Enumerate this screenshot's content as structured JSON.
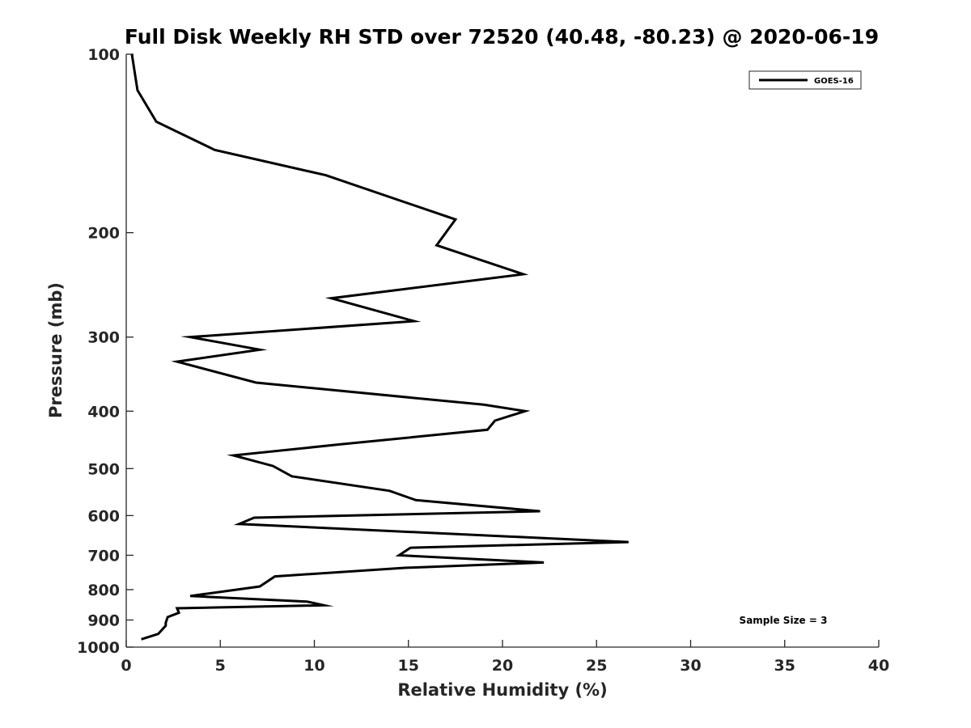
{
  "chart_data": {
    "type": "line",
    "title": "Full Disk Weekly RH STD over 72520 (40.48, -80.23) @ 2020-06-19",
    "xlabel": "Relative Humidity (%)",
    "ylabel": "Pressure (mb)",
    "xlim": [
      0,
      40
    ],
    "ylim": [
      100,
      1000
    ],
    "yscale": "log",
    "yreversed": true,
    "xticks": [
      0,
      5,
      10,
      15,
      20,
      25,
      30,
      35,
      40
    ],
    "xtick_labels": [
      "0",
      "5",
      "10",
      "15",
      "20",
      "25",
      "30",
      "35",
      "40"
    ],
    "yticks": [
      100,
      200,
      300,
      400,
      500,
      600,
      700,
      800,
      900,
      1000
    ],
    "ytick_labels": [
      "100",
      "200",
      "300",
      "400",
      "500",
      "600",
      "700",
      "800",
      "900",
      "1000"
    ],
    "grid": false,
    "legend_position": "top-right",
    "series": [
      {
        "name": "GOES-16",
        "color": "#000000",
        "x": [
          0.3,
          0.6,
          1.6,
          4.7,
          10.6,
          17.5,
          16.5,
          21.1,
          10.9,
          15.3,
          3.4,
          7.1,
          2.7,
          6.9,
          19.0,
          21.2,
          19.6,
          19.2,
          11.4,
          5.7,
          7.8,
          8.8,
          14.0,
          15.4,
          22.0,
          6.8,
          6.0,
          26.7,
          15.1,
          14.5,
          22.2,
          14.8,
          7.9,
          7.1,
          3.4,
          9.6,
          10.5,
          2.7,
          2.8,
          2.2,
          2.1,
          2.1,
          1.7,
          0.8
        ],
        "y": [
          100,
          115,
          130,
          145,
          160,
          190,
          210,
          235,
          258,
          282,
          300,
          315,
          330,
          358,
          390,
          400,
          415,
          430,
          455,
          475,
          495,
          515,
          545,
          565,
          590,
          605,
          620,
          665,
          680,
          700,
          720,
          735,
          760,
          790,
          820,
          838,
          850,
          860,
          875,
          890,
          910,
          920,
          950,
          970
        ]
      }
    ],
    "annotations": [
      "Sample Size = 3"
    ]
  }
}
